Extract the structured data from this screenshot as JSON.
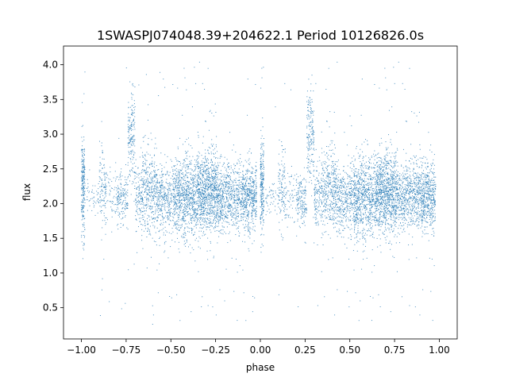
{
  "chart_data": {
    "type": "scatter",
    "title": "1SWASPJ074048.39+204622.1 Period 10126826.0s",
    "xlabel": "phase",
    "ylabel": "flux",
    "xlim": [
      -1.1,
      1.1
    ],
    "ylim": [
      0.05,
      4.27
    ],
    "xticks": [
      -1.0,
      -0.75,
      -0.5,
      -0.25,
      0.0,
      0.25,
      0.5,
      0.75,
      1.0
    ],
    "xtick_labels": [
      "−1.00",
      "−0.75",
      "−0.50",
      "−0.25",
      "0.00",
      "0.25",
      "0.50",
      "0.75",
      "1.00"
    ],
    "yticks": [
      0.5,
      1.0,
      1.5,
      2.0,
      2.5,
      3.0,
      3.5,
      4.0
    ],
    "ytick_labels": [
      "0.5",
      "1.0",
      "1.5",
      "2.0",
      "2.5",
      "3.0",
      "3.5",
      "4.0"
    ],
    "grid": false,
    "marker_color": "#1f77b4",
    "series": [
      {
        "description": "Phase-folded light curve, shown twice (phase −1 to 0 and 0 to 1). Points sampled per phase segment: [phase_start, phase_end, flux_center, flux_spread, density].",
        "segments": [
          [
            -1.0,
            -0.98,
            2.25,
            0.35,
            60
          ],
          [
            -0.97,
            -0.9,
            2.1,
            0.12,
            12
          ],
          [
            -0.9,
            -0.86,
            2.2,
            0.3,
            30
          ],
          [
            -0.86,
            -0.8,
            2.1,
            0.2,
            14
          ],
          [
            -0.8,
            -0.74,
            2.05,
            0.2,
            40
          ],
          [
            -0.74,
            -0.7,
            2.95,
            0.35,
            45
          ],
          [
            -0.7,
            -0.66,
            2.1,
            0.25,
            30
          ],
          [
            -0.66,
            -0.58,
            2.2,
            0.3,
            90
          ],
          [
            -0.58,
            -0.48,
            2.05,
            0.25,
            100
          ],
          [
            -0.48,
            -0.35,
            2.1,
            0.3,
            200
          ],
          [
            -0.35,
            -0.24,
            2.15,
            0.3,
            220
          ],
          [
            -0.24,
            -0.1,
            2.1,
            0.25,
            170
          ],
          [
            -0.1,
            -0.02,
            2.1,
            0.25,
            120
          ],
          [
            0.0,
            0.02,
            2.25,
            0.35,
            60
          ],
          [
            0.03,
            0.1,
            2.1,
            0.12,
            12
          ],
          [
            0.1,
            0.14,
            2.2,
            0.3,
            30
          ],
          [
            0.14,
            0.2,
            2.1,
            0.2,
            14
          ],
          [
            0.2,
            0.26,
            2.05,
            0.2,
            40
          ],
          [
            0.26,
            0.3,
            2.95,
            0.35,
            45
          ],
          [
            0.3,
            0.34,
            2.1,
            0.25,
            30
          ],
          [
            0.34,
            0.42,
            2.2,
            0.3,
            90
          ],
          [
            0.42,
            0.52,
            2.05,
            0.25,
            100
          ],
          [
            0.52,
            0.65,
            2.1,
            0.3,
            200
          ],
          [
            0.65,
            0.76,
            2.15,
            0.3,
            220
          ],
          [
            0.76,
            0.9,
            2.1,
            0.25,
            170
          ],
          [
            0.9,
            0.98,
            2.1,
            0.25,
            120
          ]
        ]
      }
    ]
  }
}
